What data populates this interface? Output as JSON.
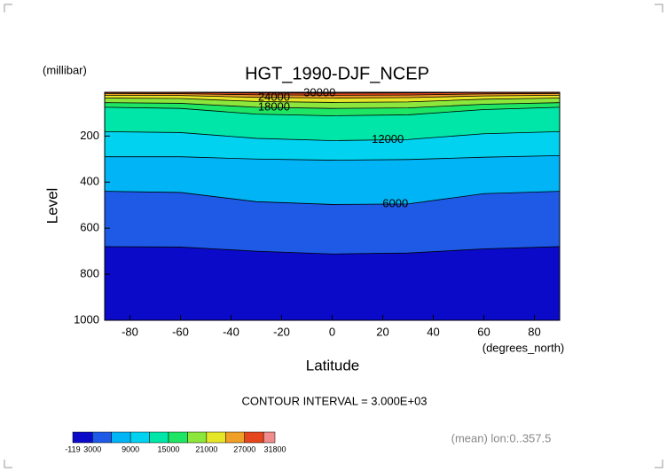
{
  "chart_data": {
    "type": "contour",
    "title": "HGT_1990-DJF_NCEP",
    "y_unit": "(millibar)",
    "y_label": "Level",
    "x_label": "Latitude",
    "x_unit": "(degrees_north)",
    "contour_interval": "CONTOUR INTERVAL = 3.000E+03",
    "note": "(mean) lon:0..357.5",
    "xlim": [
      -90,
      90
    ],
    "xticks": [
      -80,
      -60,
      -40,
      -20,
      0,
      20,
      40,
      60,
      80
    ],
    "ylim": [
      1000,
      10
    ],
    "yticks": [
      200,
      400,
      600,
      800,
      1000
    ],
    "x": [
      -90,
      -60,
      -30,
      0,
      30,
      60,
      90
    ],
    "series": [
      {
        "name": "3000",
        "values": [
          680,
          682,
          700,
          712,
          708,
          690,
          680
        ]
      },
      {
        "name": "6000",
        "values": [
          440,
          445,
          485,
          497,
          495,
          450,
          440
        ]
      },
      {
        "name": "9000",
        "values": [
          290,
          290,
          300,
          305,
          302,
          292,
          285
        ]
      },
      {
        "name": "12000",
        "values": [
          181,
          185,
          210,
          220,
          215,
          190,
          181
        ]
      },
      {
        "name": "15000",
        "values": [
          75,
          80,
          105,
          112,
          108,
          85,
          75
        ]
      },
      {
        "name": "18000",
        "values": [
          55,
          58,
          75,
          80,
          78,
          62,
          55
        ]
      },
      {
        "name": "21000",
        "values": [
          35,
          37,
          50,
          54,
          52,
          40,
          35
        ]
      },
      {
        "name": "24000",
        "values": [
          23,
          24,
          32,
          35,
          33,
          26,
          23
        ]
      },
      {
        "name": "27000",
        "values": [
          15,
          16,
          21,
          23,
          22,
          17,
          15
        ]
      },
      {
        "name": "30000",
        "values": [
          11,
          11,
          13,
          14,
          13,
          11,
          11
        ]
      }
    ],
    "band_colors": [
      "#0a0ac8",
      "#1e5ae6",
      "#00b4f5",
      "#00d2f0",
      "#00e6a8",
      "#1ee664",
      "#8ce63c",
      "#e6e628",
      "#f0a028",
      "#e6461e",
      "#f08c8c"
    ],
    "colorbar_ticks": [
      -119,
      3000,
      9000,
      15000,
      21000,
      27000,
      31800
    ]
  }
}
